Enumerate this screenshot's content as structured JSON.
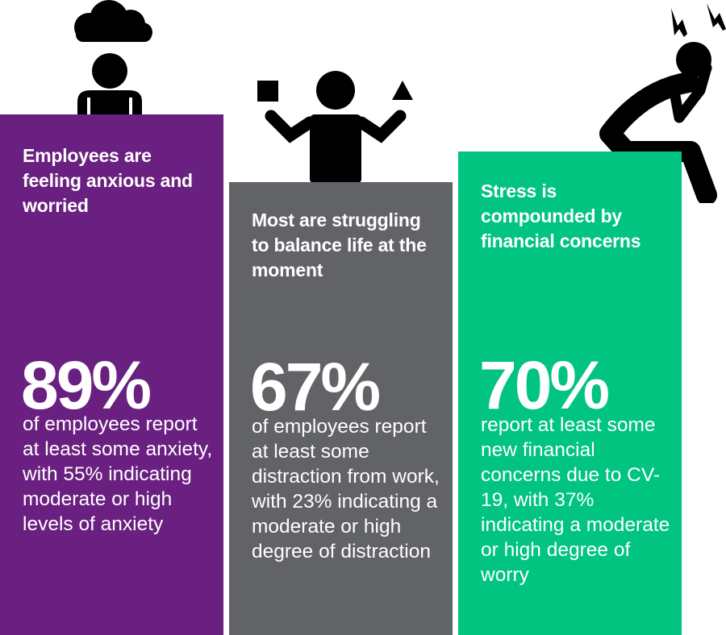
{
  "panels": [
    {
      "title": "Employees are feeling anxious and worried",
      "stat": "89%",
      "description": "of employees report at least some anxiety, with 55% indicating moderate or high levels of anxiety",
      "color": "#6a2080",
      "icon": "person-under-cloud-icon"
    },
    {
      "title": "Most are struggling to balance life at the moment",
      "stat": "67%",
      "description": "of employees report at least some distraction from work, with 23% indicating a moderate or high degree of distraction",
      "color": "#626366",
      "icon": "person-juggling-shapes-icon"
    },
    {
      "title": "Stress is compounded by financial concerns",
      "stat": "70%",
      "description": "report at least some new financial concerns due to CV-19, with 37% indicating a moderate or high degree of worry",
      "color": "#00c47f",
      "icon": "stressed-person-sitting-icon"
    }
  ]
}
